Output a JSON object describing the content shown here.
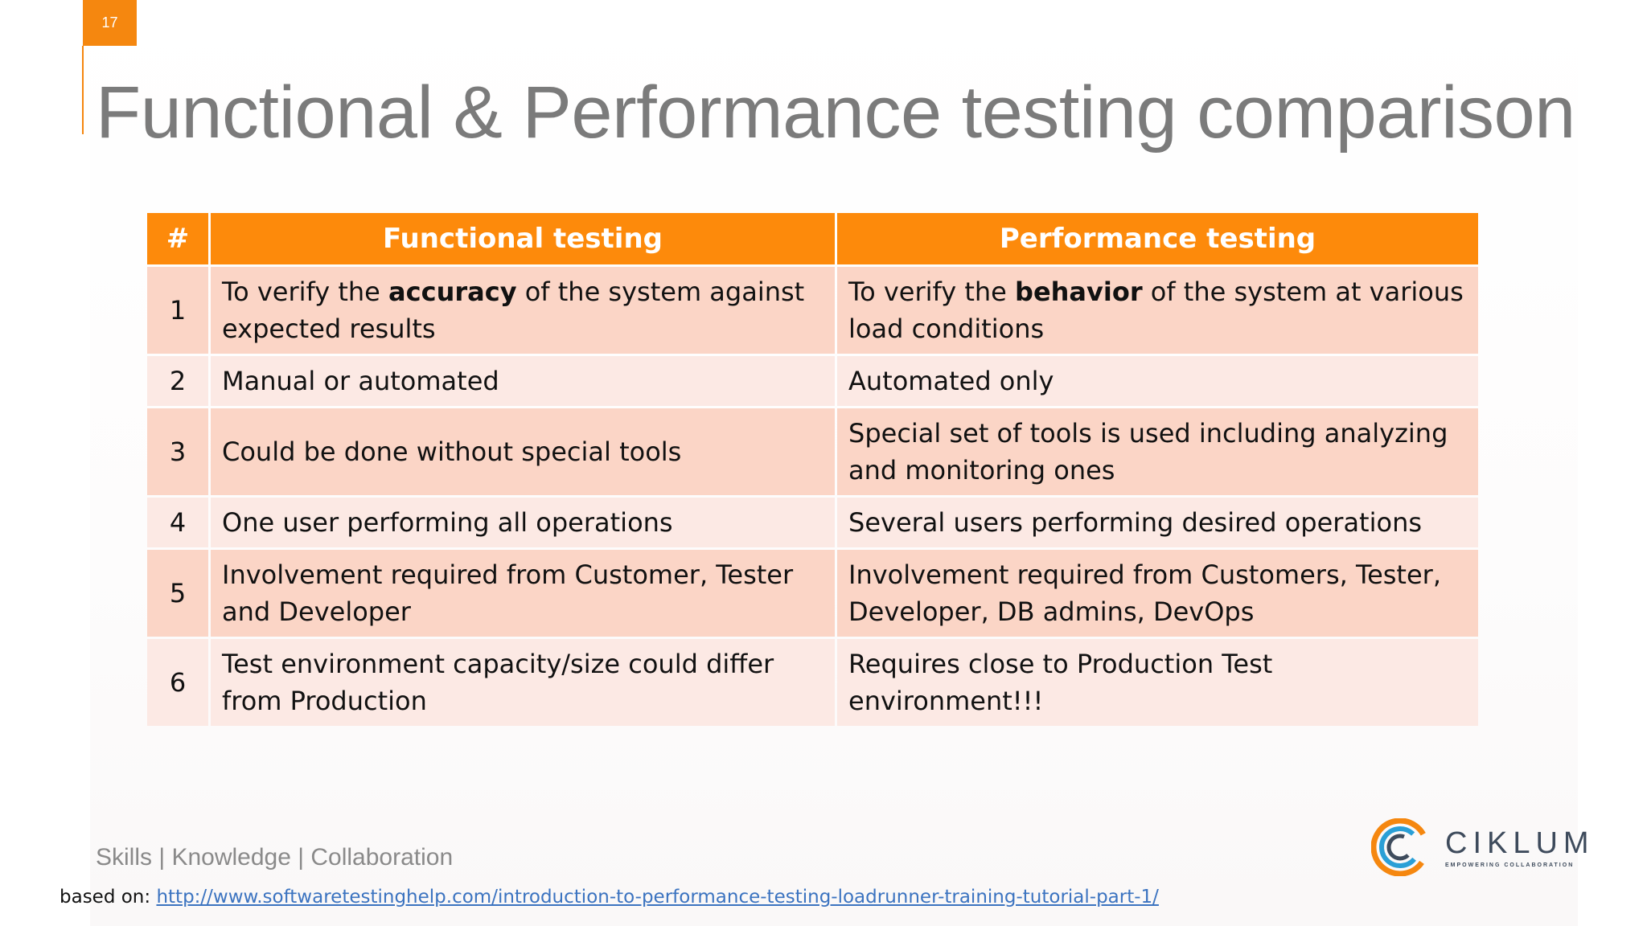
{
  "slide": {
    "page_number": "17",
    "title": "Functional & Performance testing comparison",
    "tagline": "Skills | Knowledge | Collaboration",
    "source_prefix": "based on: ",
    "source_link": "http://www.softwaretestinghelp.com/introduction-to-performance-testing-loadrunner-training-tutorial-part-1/"
  },
  "table": {
    "headers": [
      "#",
      "Functional testing",
      "Performance testing"
    ],
    "rows": [
      {
        "num": "1",
        "functional": {
          "pre": "To verify the ",
          "bold": "accuracy",
          "post": " of the system against expected results"
        },
        "performance": {
          "pre": "To verify the ",
          "bold": "behavior",
          "post": " of the system at various load conditions"
        }
      },
      {
        "num": "2",
        "functional": "Manual or automated",
        "performance": "Automated only"
      },
      {
        "num": "3",
        "functional": "Could be done without special tools",
        "performance": "Special set of tools is used including analyzing and monitoring ones"
      },
      {
        "num": "4",
        "functional": "One user performing all operations",
        "performance": "Several users performing desired operations"
      },
      {
        "num": "5",
        "functional": "Involvement required from Customer, Tester and Developer",
        "performance": "Involvement required from Customers, Tester, Developer, DB admins, DevOps"
      },
      {
        "num": "6",
        "functional": "Test environment capacity/size could differ from Production",
        "performance": "Requires close to Production Test environment!!!"
      }
    ]
  },
  "logo": {
    "name": "CIKLUM",
    "tagline": "EMPOWERING COLLABORATION",
    "colors": {
      "orange": "#f5870f",
      "blue": "#2a9fd6",
      "dark": "#3e4b5c"
    }
  }
}
